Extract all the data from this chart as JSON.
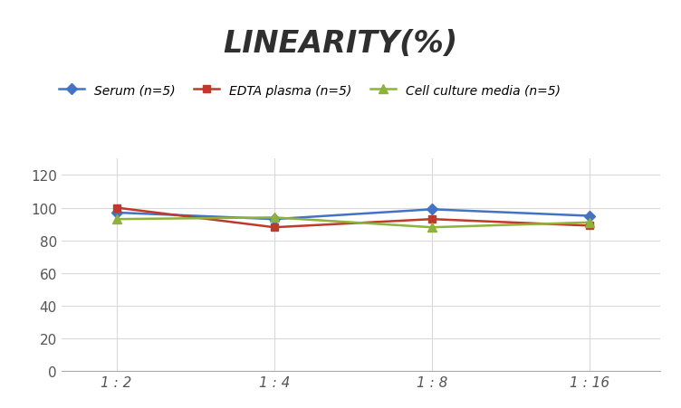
{
  "title": "LINEARITY(%)",
  "x_labels": [
    "1 : 2",
    "1 : 4",
    "1 : 8",
    "1 : 16"
  ],
  "x_positions": [
    0,
    1,
    2,
    3
  ],
  "series": [
    {
      "label": "Serum (n=5)",
      "values": [
        97,
        93,
        99,
        95
      ],
      "color": "#4472C4",
      "marker": "D",
      "markersize": 6,
      "linewidth": 1.8
    },
    {
      "label": "EDTA plasma (n=5)",
      "values": [
        100,
        88,
        93,
        89
      ],
      "color": "#C0392B",
      "marker": "s",
      "markersize": 6,
      "linewidth": 1.8
    },
    {
      "label": "Cell culture media (n=5)",
      "values": [
        93,
        94,
        88,
        91
      ],
      "color": "#8DB33A",
      "marker": "^",
      "markersize": 7,
      "linewidth": 1.8
    }
  ],
  "ylim": [
    0,
    130
  ],
  "yticks": [
    0,
    20,
    40,
    60,
    80,
    100,
    120
  ],
  "background_color": "#FFFFFF",
  "grid_color": "#D9D9D9",
  "title_fontsize": 24,
  "legend_fontsize": 10,
  "tick_fontsize": 11
}
